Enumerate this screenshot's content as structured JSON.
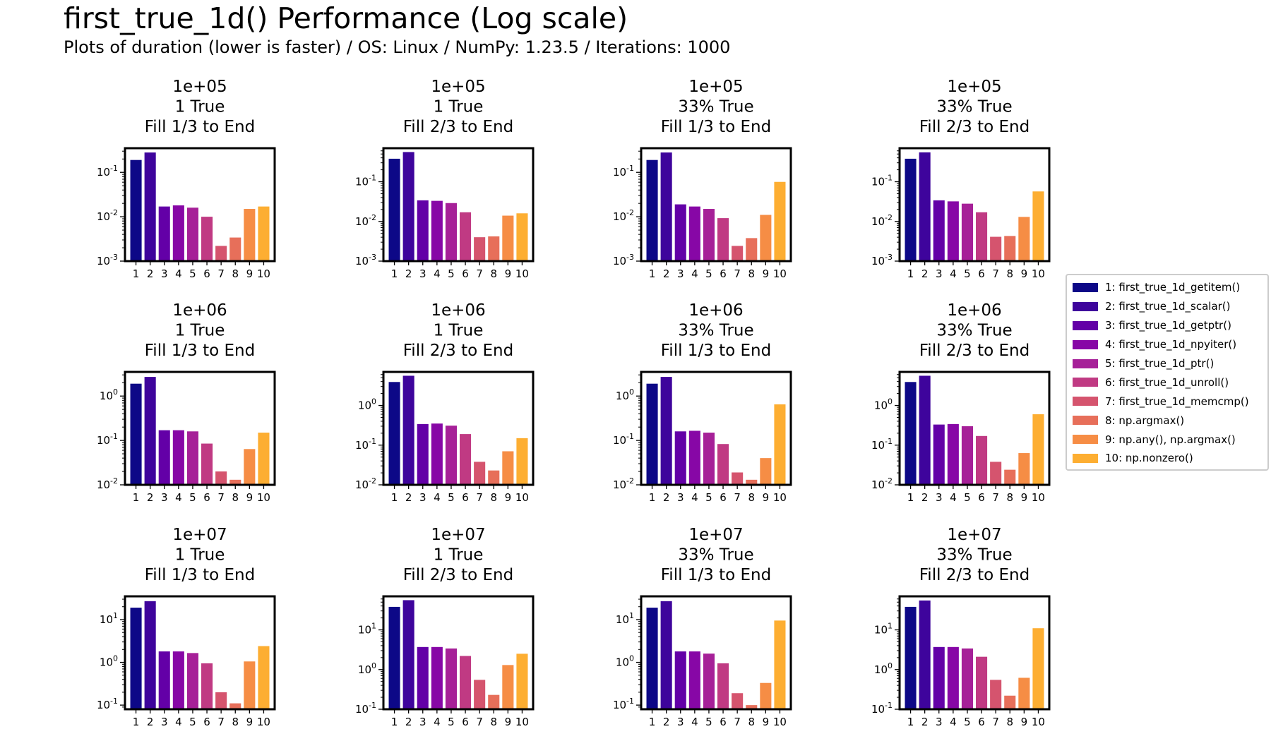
{
  "title": "first_true_1d() Performance (Log scale)",
  "subtitle": "Plots of duration (lower is faster) / OS: Linux / NumPy: 1.23.5 / Iterations: 1000",
  "legend": [
    {
      "label": "1: first_true_1d_getitem()",
      "color": "#0d0887"
    },
    {
      "label": "2: first_true_1d_scalar()",
      "color": "#3e049c"
    },
    {
      "label": "3: first_true_1d_getptr()",
      "color": "#6300a7"
    },
    {
      "label": "4: first_true_1d_npyiter()",
      "color": "#8707a6"
    },
    {
      "label": "5: first_true_1d_ptr()",
      "color": "#a62098"
    },
    {
      "label": "6: first_true_1d_unroll()",
      "color": "#c03a83"
    },
    {
      "label": "7: first_true_1d_memcmp()",
      "color": "#d5546e"
    },
    {
      "label": "8: np.argmax()",
      "color": "#e76f5a"
    },
    {
      "label": "9: np.any(), np.argmax()",
      "color": "#f68d45"
    },
    {
      "label": "10: np.nonzero()",
      "color": "#fdae32"
    }
  ],
  "chart_data": [
    {
      "type": "bar",
      "title": "1e+05\n1 True\nFill 1/3 to End",
      "yscale": "log",
      "ylim": [
        0.001,
        0.35
      ],
      "yticks": [
        [
          "10",
          "-3",
          0.001
        ],
        [
          "10",
          "-2",
          0.01
        ],
        [
          "10",
          "-1",
          0.1
        ]
      ],
      "categories": [
        "1",
        "2",
        "3",
        "4",
        "5",
        "6",
        "7",
        "8",
        "9",
        "10"
      ],
      "values": [
        0.19,
        0.28,
        0.017,
        0.018,
        0.016,
        0.01,
        0.0022,
        0.0034,
        0.015,
        0.017
      ]
    },
    {
      "type": "bar",
      "title": "1e+05\n1 True\nFill 2/3 to End",
      "yscale": "log",
      "ylim": [
        0.001,
        0.7
      ],
      "yticks": [
        [
          "10",
          "-3",
          0.001
        ],
        [
          "10",
          "-2",
          0.01
        ],
        [
          "10",
          "-1",
          0.1
        ]
      ],
      "categories": [
        "1",
        "2",
        "3",
        "4",
        "5",
        "6",
        "7",
        "8",
        "9",
        "10"
      ],
      "values": [
        0.38,
        0.56,
        0.034,
        0.033,
        0.029,
        0.017,
        0.004,
        0.0042,
        0.014,
        0.016
      ]
    },
    {
      "type": "bar",
      "title": "1e+05\n33% True\nFill 1/3 to End",
      "yscale": "log",
      "ylim": [
        0.001,
        0.35
      ],
      "yticks": [
        [
          "10",
          "-3",
          0.001
        ],
        [
          "10",
          "-2",
          0.01
        ],
        [
          "10",
          "-1",
          0.1
        ]
      ],
      "categories": [
        "1",
        "2",
        "3",
        "4",
        "5",
        "6",
        "7",
        "8",
        "9",
        "10"
      ],
      "values": [
        0.19,
        0.28,
        0.019,
        0.017,
        0.015,
        0.0093,
        0.0022,
        0.0033,
        0.011,
        0.061
      ]
    },
    {
      "type": "bar",
      "title": "1e+05\n33% True\nFill 2/3 to End",
      "yscale": "log",
      "ylim": [
        0.001,
        0.7
      ],
      "yticks": [
        [
          "10",
          "-3",
          0.001
        ],
        [
          "10",
          "-2",
          0.01
        ],
        [
          "10",
          "-1",
          0.1
        ]
      ],
      "categories": [
        "1",
        "2",
        "3",
        "4",
        "5",
        "6",
        "7",
        "8",
        "9",
        "10"
      ],
      "values": [
        0.38,
        0.55,
        0.034,
        0.032,
        0.028,
        0.017,
        0.0041,
        0.0043,
        0.013,
        0.057
      ]
    },
    {
      "type": "bar",
      "title": "1e+06\n1 True\nFill 1/3 to End",
      "yscale": "log",
      "ylim": [
        0.01,
        3.5
      ],
      "yticks": [
        [
          "10",
          "-2",
          0.01
        ],
        [
          "10",
          "-1",
          0.1
        ],
        [
          "10",
          "0",
          1
        ]
      ],
      "categories": [
        "1",
        "2",
        "3",
        "4",
        "5",
        "6",
        "7",
        "8",
        "9",
        "10"
      ],
      "values": [
        1.9,
        2.7,
        0.17,
        0.17,
        0.16,
        0.085,
        0.02,
        0.013,
        0.064,
        0.15
      ]
    },
    {
      "type": "bar",
      "title": "1e+06\n1 True\nFill 2/3 to End",
      "yscale": "log",
      "ylim": [
        0.01,
        7
      ],
      "yticks": [
        [
          "10",
          "-2",
          0.01
        ],
        [
          "10",
          "-1",
          0.1
        ],
        [
          "10",
          "0",
          1
        ]
      ],
      "categories": [
        "1",
        "2",
        "3",
        "4",
        "5",
        "6",
        "7",
        "8",
        "9",
        "10"
      ],
      "values": [
        3.9,
        5.6,
        0.34,
        0.35,
        0.31,
        0.19,
        0.038,
        0.023,
        0.07,
        0.15
      ]
    },
    {
      "type": "bar",
      "title": "1e+06\n33% True\nFill 1/3 to End",
      "yscale": "log",
      "ylim": [
        0.01,
        3.5
      ],
      "yticks": [
        [
          "10",
          "-2",
          0.01
        ],
        [
          "10",
          "-1",
          0.1
        ],
        [
          "10",
          "0",
          1
        ]
      ],
      "categories": [
        "1",
        "2",
        "3",
        "4",
        "5",
        "6",
        "7",
        "8",
        "9",
        "10"
      ],
      "values": [
        1.9,
        2.7,
        0.16,
        0.165,
        0.15,
        0.083,
        0.019,
        0.013,
        0.04,
        0.65
      ]
    },
    {
      "type": "bar",
      "title": "1e+06\n33% True\nFill 2/3 to End",
      "yscale": "log",
      "ylim": [
        0.01,
        7
      ],
      "yticks": [
        [
          "10",
          "-2",
          0.01
        ],
        [
          "10",
          "-1",
          0.1
        ],
        [
          "10",
          "0",
          1
        ]
      ],
      "categories": [
        "1",
        "2",
        "3",
        "4",
        "5",
        "6",
        "7",
        "8",
        "9",
        "10"
      ],
      "values": [
        3.9,
        5.6,
        0.33,
        0.34,
        0.3,
        0.17,
        0.038,
        0.024,
        0.063,
        0.6
      ]
    },
    {
      "type": "bar",
      "title": "1e+07\n1 True\nFill 1/3 to End",
      "yscale": "log",
      "ylim": [
        0.08,
        35
      ],
      "yticks": [
        [
          "10",
          "-1",
          0.1
        ],
        [
          "10",
          "0",
          1
        ],
        [
          "10",
          "1",
          10
        ]
      ],
      "categories": [
        "1",
        "2",
        "3",
        "4",
        "5",
        "6",
        "7",
        "8",
        "9",
        "10"
      ],
      "values": [
        19,
        27,
        1.8,
        1.8,
        1.65,
        0.95,
        0.2,
        0.11,
        1.05,
        2.4
      ]
    },
    {
      "type": "bar",
      "title": "1e+07\n1 True\nFill 2/3 to End",
      "yscale": "log",
      "ylim": [
        0.1,
        70
      ],
      "yticks": [
        [
          "10",
          "-1",
          0.1
        ],
        [
          "10",
          "0",
          1
        ],
        [
          "10",
          "1",
          10
        ]
      ],
      "categories": [
        "1",
        "2",
        "3",
        "4",
        "5",
        "6",
        "7",
        "8",
        "9",
        "10"
      ],
      "values": [
        38,
        56,
        3.7,
        3.7,
        3.4,
        2.2,
        0.55,
        0.23,
        1.3,
        2.5
      ]
    },
    {
      "type": "bar",
      "title": "1e+07\n33% True\nFill 1/3 to End",
      "yscale": "log",
      "ylim": [
        0.08,
        35
      ],
      "yticks": [
        [
          "10",
          "-1",
          0.1
        ],
        [
          "10",
          "0",
          1
        ],
        [
          "10",
          "1",
          10
        ]
      ],
      "categories": [
        "1",
        "2",
        "3",
        "4",
        "5",
        "6",
        "7",
        "8",
        "9",
        "10"
      ],
      "values": [
        19,
        27,
        1.8,
        1.8,
        1.6,
        0.95,
        0.19,
        0.1,
        0.33,
        9.5
      ]
    },
    {
      "type": "bar",
      "title": "1e+07\n33% True\nFill 2/3 to End",
      "yscale": "log",
      "ylim": [
        0.1,
        70
      ],
      "yticks": [
        [
          "10",
          "-1",
          0.1
        ],
        [
          "10",
          "0",
          1
        ],
        [
          "10",
          "1",
          10
        ]
      ],
      "categories": [
        "1",
        "2",
        "3",
        "4",
        "5",
        "6",
        "7",
        "8",
        "9",
        "10"
      ],
      "values": [
        38,
        55,
        3.7,
        3.7,
        3.4,
        2.1,
        0.55,
        0.22,
        0.62,
        11
      ]
    }
  ]
}
